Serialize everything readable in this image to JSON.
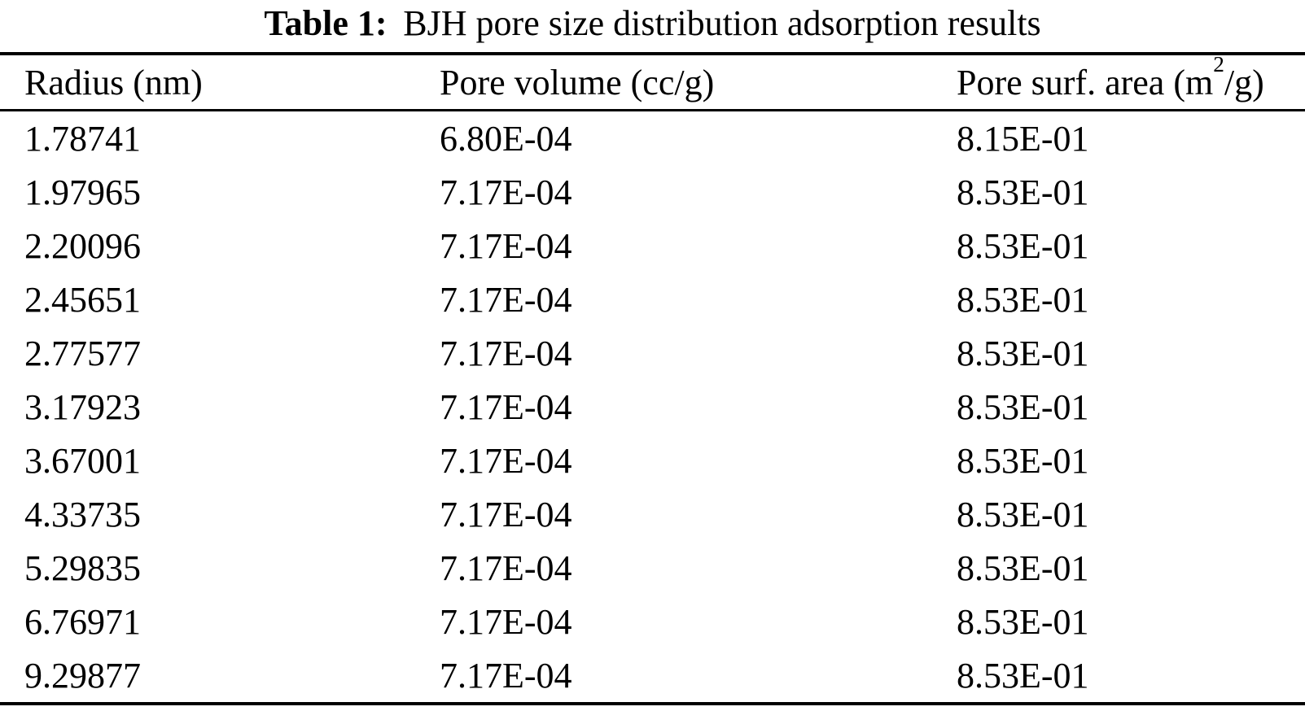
{
  "caption": {
    "label": "Table 1:",
    "text": "BJH pore size distribution adsorption results"
  },
  "table": {
    "columns": [
      {
        "label": "Radius (nm)"
      },
      {
        "label": "Pore volume (cc/g)"
      },
      {
        "label_pre": "Pore surf. area (m",
        "label_sup": "2",
        "label_post": "/g)"
      }
    ],
    "rows": [
      [
        "1.78741",
        "6.80E-04",
        "8.15E-01"
      ],
      [
        "1.97965",
        "7.17E-04",
        "8.53E-01"
      ],
      [
        "2.20096",
        "7.17E-04",
        "8.53E-01"
      ],
      [
        "2.45651",
        "7.17E-04",
        "8.53E-01"
      ],
      [
        "2.77577",
        "7.17E-04",
        "8.53E-01"
      ],
      [
        "3.17923",
        "7.17E-04",
        "8.53E-01"
      ],
      [
        "3.67001",
        "7.17E-04",
        "8.53E-01"
      ],
      [
        "4.33735",
        "7.17E-04",
        "8.53E-01"
      ],
      [
        "5.29835",
        "7.17E-04",
        "8.53E-01"
      ],
      [
        "6.76971",
        "7.17E-04",
        "8.53E-01"
      ],
      [
        "9.29877",
        "7.17E-04",
        "8.53E-01"
      ]
    ]
  },
  "colors": {
    "text": "#000000",
    "background": "#ffffff",
    "rule": "#000000"
  }
}
